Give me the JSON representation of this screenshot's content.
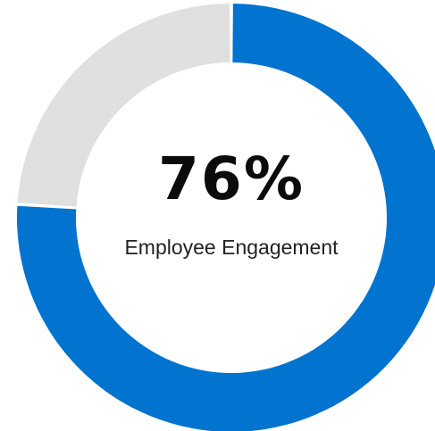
{
  "chart_data": {
    "type": "pie",
    "variant": "donut",
    "categories": [
      "Employee Engagement",
      ""
    ],
    "values": [
      76,
      24
    ],
    "center_value": "76%",
    "center_label": "Employee Engagement",
    "colors": [
      "#0273cf",
      "#e0e0e0"
    ],
    "legend": "none"
  }
}
